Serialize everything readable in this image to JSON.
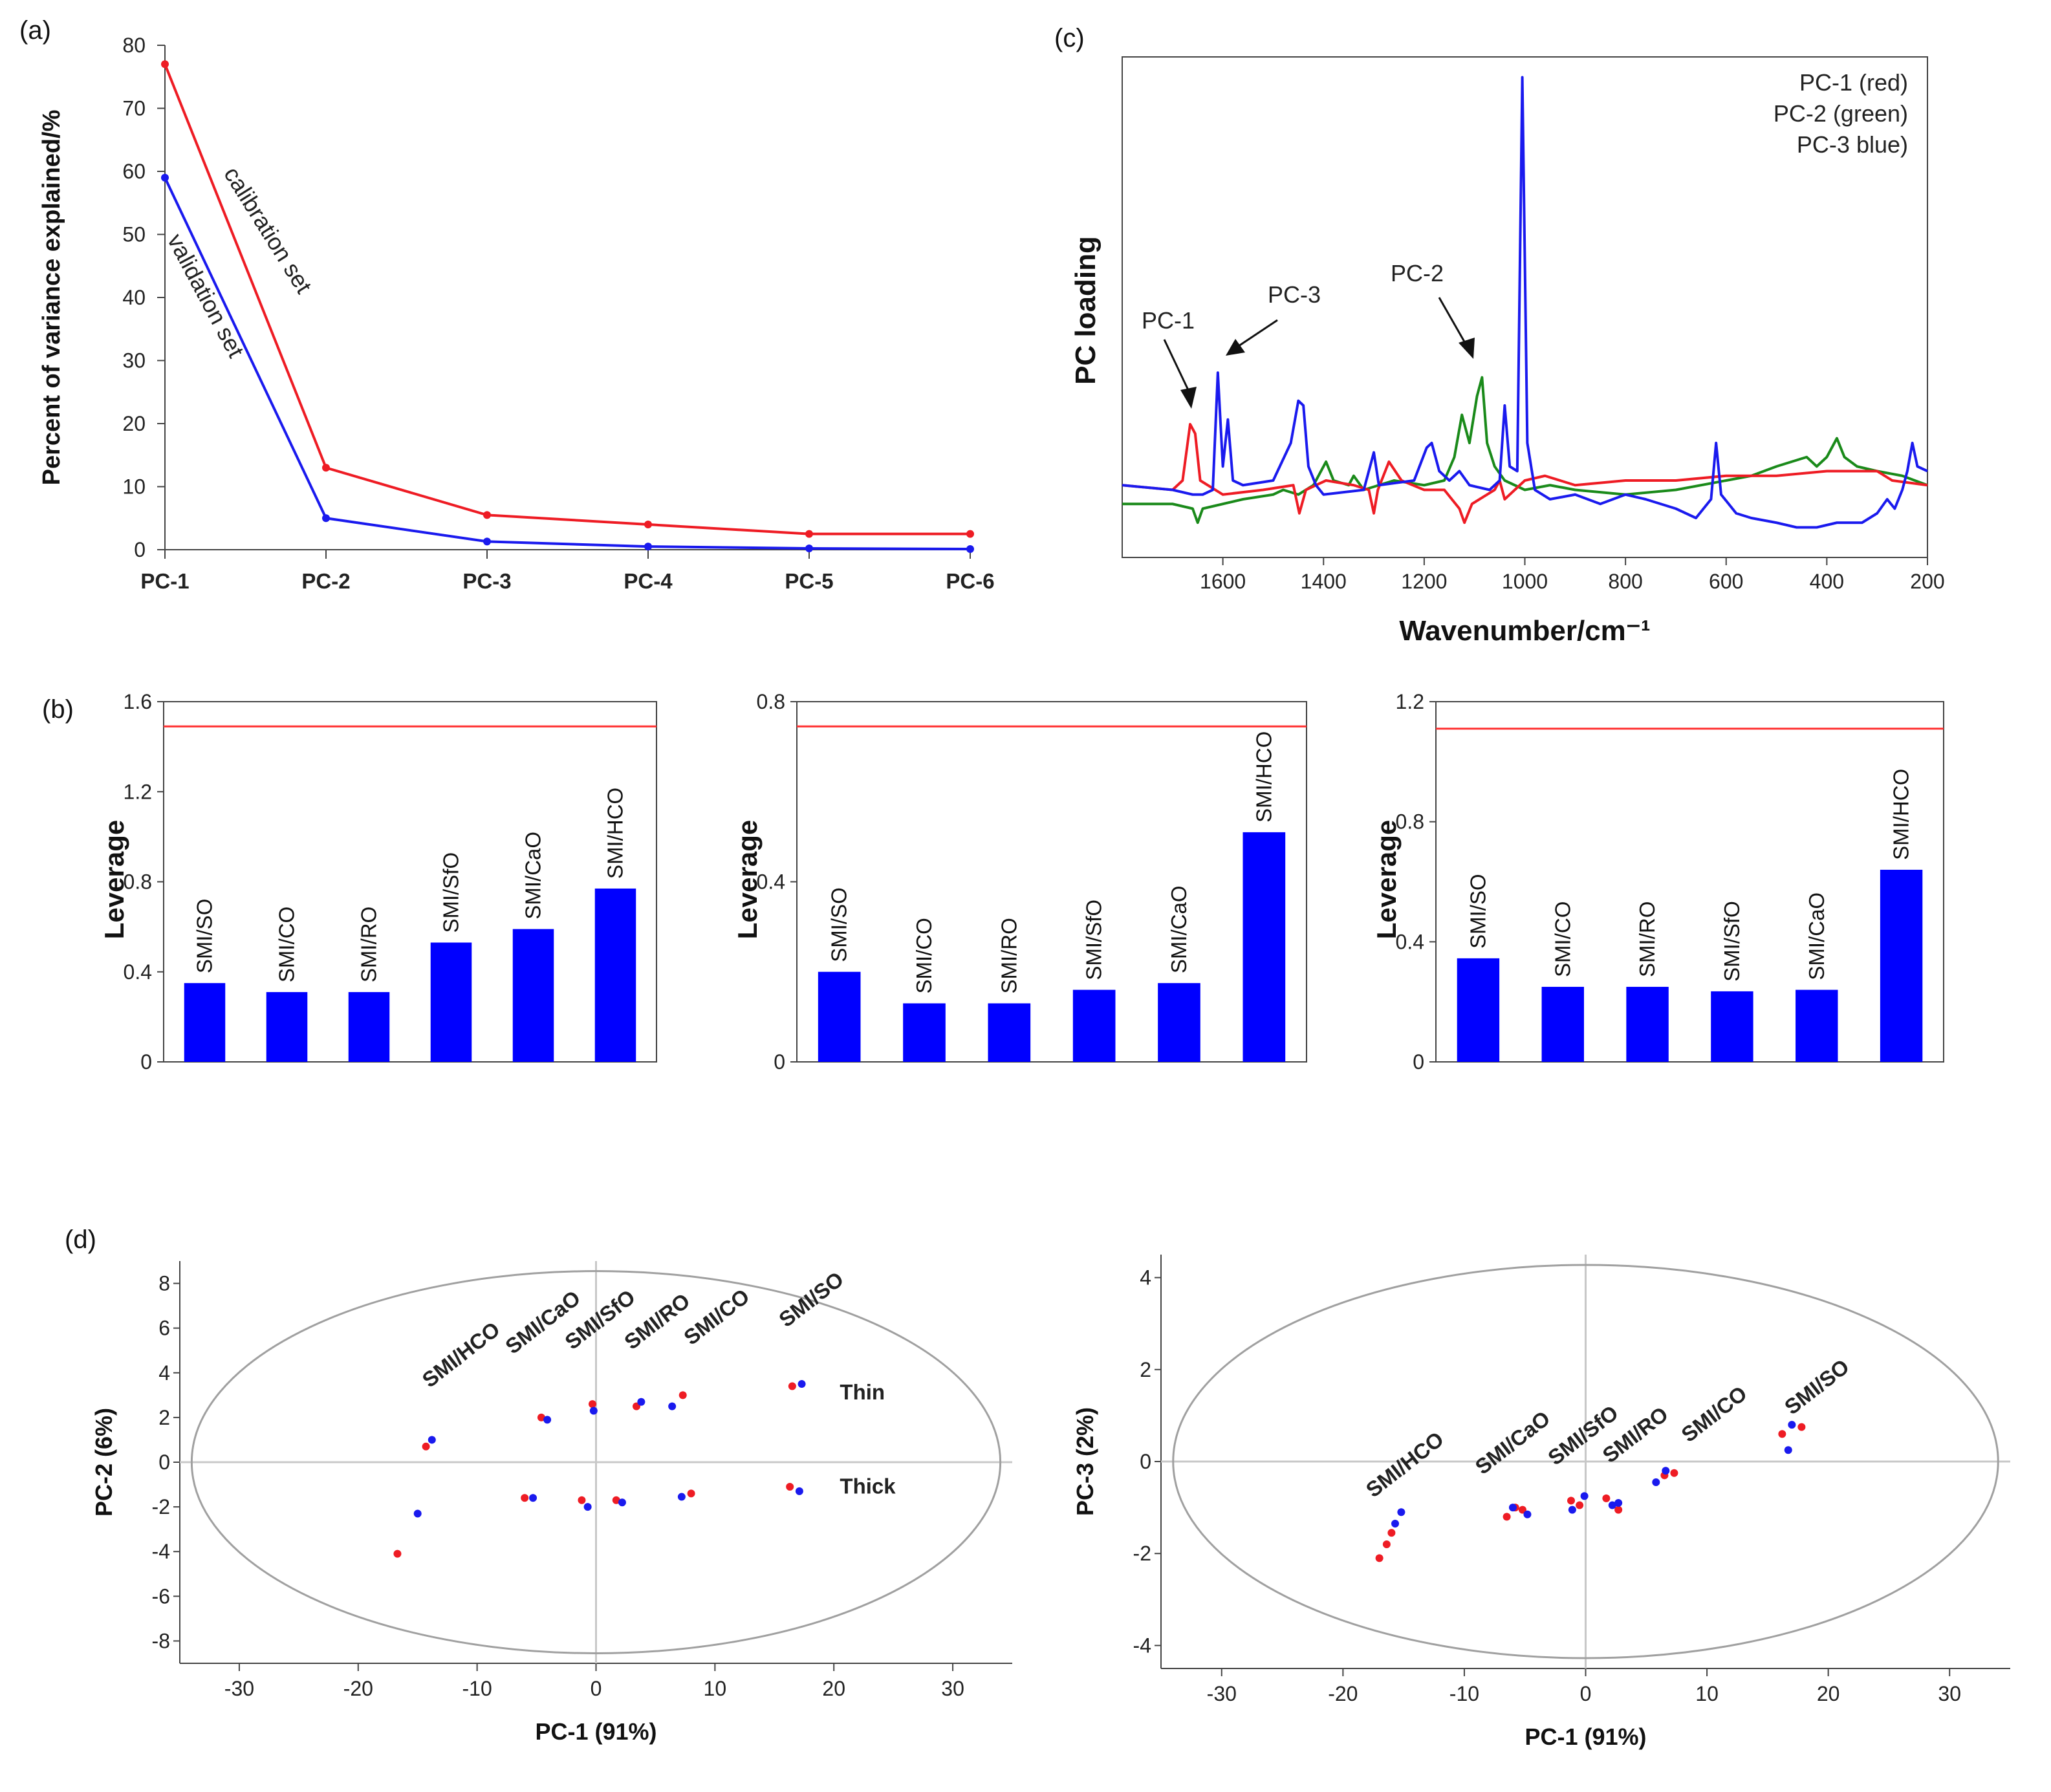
{
  "panel_labels": {
    "a": "(a)",
    "b": "(b)",
    "c": "(c)",
    "d": "(d)"
  },
  "colors": {
    "red": "#ee1c24",
    "blue": "#1a1aee",
    "green": "#1a8a1a",
    "bar": "#0000ff",
    "threshold": "#ff3030",
    "ellipse": "#a0a0a0"
  },
  "chart_data": [
    {
      "id": "a",
      "type": "line",
      "ylabel": "Percent of variance explained/%",
      "categories": [
        "PC-1",
        "PC-2",
        "PC-3",
        "PC-4",
        "PC-5",
        "PC-6"
      ],
      "ylim": [
        0,
        80
      ],
      "yticks": [
        "0",
        "10",
        "20",
        "30",
        "40",
        "50",
        "60",
        "70",
        "80"
      ],
      "series": [
        {
          "name": "calibration set",
          "color": "red",
          "values": [
            77,
            13,
            5.5,
            4,
            2.5,
            2.5
          ]
        },
        {
          "name": "validation set",
          "color": "blue",
          "values": [
            59,
            5,
            1.3,
            0.5,
            0.2,
            0.1
          ]
        }
      ]
    },
    {
      "id": "b1",
      "type": "bar",
      "ylabel": "Leverage",
      "categories": [
        "SMI/SO",
        "SMI/CO",
        "SMI/RO",
        "SMI/SfO",
        "SMI/CaO",
        "SMI/HCO"
      ],
      "values": [
        0.35,
        0.31,
        0.31,
        0.53,
        0.59,
        0.77
      ],
      "threshold": 1.49,
      "ylim": [
        0,
        1.6
      ],
      "yticks": [
        "0",
        "0.4",
        "0.8",
        "1.2",
        "1.6"
      ]
    },
    {
      "id": "b2",
      "type": "bar",
      "ylabel": "Leverage",
      "categories": [
        "SMI/SO",
        "SMI/CO",
        "SMI/RO",
        "SMI/SfO",
        "SMI/CaO",
        "SMI/HCO"
      ],
      "values": [
        0.2,
        0.13,
        0.13,
        0.16,
        0.175,
        0.51
      ],
      "threshold": 0.745,
      "ylim": [
        0,
        0.8
      ],
      "yticks": [
        "0",
        "0.4",
        "0.8"
      ]
    },
    {
      "id": "b3",
      "type": "bar",
      "ylabel": "Leverage",
      "categories": [
        "SMI/SO",
        "SMI/CO",
        "SMI/RO",
        "SMI/SfO",
        "SMI/CaO",
        "SMI/HCO"
      ],
      "values": [
        0.345,
        0.25,
        0.25,
        0.235,
        0.24,
        0.64
      ],
      "threshold": 1.11,
      "ylim": [
        0,
        1.2
      ],
      "yticks": [
        "0",
        "0.4",
        "0.8",
        "1.2"
      ]
    },
    {
      "id": "c",
      "type": "line",
      "xlabel": "Wavenumber/cm⁻¹",
      "ylabel": "PC loading",
      "xlim": [
        1800,
        200
      ],
      "xticks": [
        "1600",
        "1400",
        "1200",
        "1000",
        "800",
        "600",
        "400",
        "200"
      ],
      "legend": [
        "PC-1 (red)",
        "PC-2 (green)",
        "PC-3 blue)"
      ],
      "annotations": [
        {
          "text": "PC-1",
          "x": 1660
        },
        {
          "text": "PC-3",
          "x": 1610
        },
        {
          "text": "PC-2",
          "x": 1085
        }
      ],
      "series": [
        {
          "name": "PC-1",
          "color": "red",
          "points": [
            [
              1800,
              0.11
            ],
            [
              1700,
              0.1
            ],
            [
              1680,
              0.12
            ],
            [
              1665,
              0.24
            ],
            [
              1655,
              0.22
            ],
            [
              1645,
              0.12
            ],
            [
              1600,
              0.09
            ],
            [
              1520,
              0.1
            ],
            [
              1460,
              0.11
            ],
            [
              1448,
              0.05
            ],
            [
              1435,
              0.1
            ],
            [
              1395,
              0.12
            ],
            [
              1340,
              0.11
            ],
            [
              1310,
              0.1
            ],
            [
              1300,
              0.05
            ],
            [
              1292,
              0.1
            ],
            [
              1270,
              0.16
            ],
            [
              1245,
              0.12
            ],
            [
              1200,
              0.1
            ],
            [
              1160,
              0.1
            ],
            [
              1130,
              0.06
            ],
            [
              1120,
              0.03
            ],
            [
              1105,
              0.07
            ],
            [
              1060,
              0.1
            ],
            [
              1050,
              0.12
            ],
            [
              1040,
              0.08
            ],
            [
              1020,
              0.1
            ],
            [
              1000,
              0.12
            ],
            [
              960,
              0.13
            ],
            [
              900,
              0.11
            ],
            [
              800,
              0.12
            ],
            [
              700,
              0.12
            ],
            [
              600,
              0.13
            ],
            [
              500,
              0.13
            ],
            [
              400,
              0.14
            ],
            [
              300,
              0.14
            ],
            [
              270,
              0.12
            ],
            [
              200,
              0.11
            ]
          ]
        },
        {
          "name": "PC-2",
          "color": "green",
          "points": [
            [
              1800,
              0.07
            ],
            [
              1700,
              0.07
            ],
            [
              1660,
              0.06
            ],
            [
              1650,
              0.03
            ],
            [
              1640,
              0.06
            ],
            [
              1560,
              0.08
            ],
            [
              1500,
              0.09
            ],
            [
              1480,
              0.1
            ],
            [
              1450,
              0.09
            ],
            [
              1420,
              0.11
            ],
            [
              1395,
              0.16
            ],
            [
              1380,
              0.12
            ],
            [
              1350,
              0.11
            ],
            [
              1340,
              0.13
            ],
            [
              1320,
              0.1
            ],
            [
              1260,
              0.12
            ],
            [
              1200,
              0.11
            ],
            [
              1160,
              0.12
            ],
            [
              1140,
              0.17
            ],
            [
              1125,
              0.26
            ],
            [
              1110,
              0.2
            ],
            [
              1095,
              0.3
            ],
            [
              1085,
              0.34
            ],
            [
              1075,
              0.2
            ],
            [
              1060,
              0.15
            ],
            [
              1040,
              0.12
            ],
            [
              1000,
              0.1
            ],
            [
              950,
              0.11
            ],
            [
              900,
              0.1
            ],
            [
              800,
              0.09
            ],
            [
              700,
              0.1
            ],
            [
              600,
              0.12
            ],
            [
              550,
              0.13
            ],
            [
              500,
              0.15
            ],
            [
              470,
              0.16
            ],
            [
              440,
              0.17
            ],
            [
              420,
              0.15
            ],
            [
              400,
              0.17
            ],
            [
              380,
              0.21
            ],
            [
              365,
              0.17
            ],
            [
              340,
              0.15
            ],
            [
              300,
              0.14
            ],
            [
              250,
              0.13
            ],
            [
              200,
              0.11
            ]
          ]
        },
        {
          "name": "PC-3",
          "color": "blue",
          "points": [
            [
              1800,
              0.11
            ],
            [
              1700,
              0.1
            ],
            [
              1660,
              0.09
            ],
            [
              1640,
              0.09
            ],
            [
              1620,
              0.1
            ],
            [
              1610,
              0.35
            ],
            [
              1600,
              0.15
            ],
            [
              1590,
              0.25
            ],
            [
              1580,
              0.12
            ],
            [
              1560,
              0.11
            ],
            [
              1500,
              0.12
            ],
            [
              1465,
              0.2
            ],
            [
              1450,
              0.29
            ],
            [
              1440,
              0.28
            ],
            [
              1430,
              0.15
            ],
            [
              1415,
              0.11
            ],
            [
              1400,
              0.09
            ],
            [
              1320,
              0.1
            ],
            [
              1300,
              0.18
            ],
            [
              1290,
              0.11
            ],
            [
              1220,
              0.12
            ],
            [
              1195,
              0.19
            ],
            [
              1185,
              0.2
            ],
            [
              1170,
              0.14
            ],
            [
              1150,
              0.12
            ],
            [
              1130,
              0.14
            ],
            [
              1110,
              0.11
            ],
            [
              1070,
              0.1
            ],
            [
              1050,
              0.12
            ],
            [
              1040,
              0.28
            ],
            [
              1030,
              0.15
            ],
            [
              1015,
              0.14
            ],
            [
              1005,
              0.98
            ],
            [
              995,
              0.2
            ],
            [
              980,
              0.1
            ],
            [
              950,
              0.08
            ],
            [
              900,
              0.09
            ],
            [
              850,
              0.07
            ],
            [
              800,
              0.09
            ],
            [
              760,
              0.08
            ],
            [
              700,
              0.06
            ],
            [
              660,
              0.04
            ],
            [
              630,
              0.08
            ],
            [
              620,
              0.2
            ],
            [
              610,
              0.09
            ],
            [
              580,
              0.05
            ],
            [
              550,
              0.04
            ],
            [
              500,
              0.03
            ],
            [
              460,
              0.02
            ],
            [
              420,
              0.02
            ],
            [
              380,
              0.03
            ],
            [
              330,
              0.03
            ],
            [
              300,
              0.05
            ],
            [
              280,
              0.08
            ],
            [
              265,
              0.06
            ],
            [
              250,
              0.1
            ],
            [
              240,
              0.14
            ],
            [
              230,
              0.2
            ],
            [
              220,
              0.15
            ],
            [
              200,
              0.14
            ]
          ]
        }
      ]
    },
    {
      "id": "d1",
      "type": "scatter",
      "xlabel": "PC-1 (91%)",
      "ylabel": "PC-2 (6%)",
      "xlim": [
        -35,
        35
      ],
      "ylim": [
        -9,
        9
      ],
      "xticks": [
        "-30",
        "-20",
        "-10",
        "0",
        "10",
        "20",
        "30"
      ],
      "yticks": [
        "8",
        "6",
        "4",
        "2",
        "0",
        "-2",
        "-4",
        "-6",
        "-8"
      ],
      "group_labels": [
        {
          "text": "SMI/HCO",
          "x": -14,
          "y": 3.3
        },
        {
          "text": "SMI/CaO",
          "x": -7,
          "y": 4.8
        },
        {
          "text": "SMI/SfO",
          "x": -2,
          "y": 5.0
        },
        {
          "text": "SMI/RO",
          "x": 3,
          "y": 5.0
        },
        {
          "text": "SMI/CO",
          "x": 8,
          "y": 5.2
        },
        {
          "text": "SMI/SO",
          "x": 16,
          "y": 6.0
        }
      ],
      "text_labels": [
        {
          "text": "Thin",
          "x": 20.5,
          "y": 2.8
        },
        {
          "text": "Thick",
          "x": 20.5,
          "y": -1.4
        }
      ],
      "series": [
        {
          "name": "red",
          "color": "red",
          "points": [
            [
              -14.3,
              0.7
            ],
            [
              -4.6,
              2.0
            ],
            [
              -0.3,
              2.6
            ],
            [
              3.4,
              2.5
            ],
            [
              7.3,
              3.0
            ],
            [
              16.5,
              3.4
            ],
            [
              -6,
              -1.6
            ],
            [
              -1.2,
              -1.7
            ],
            [
              1.7,
              -1.7
            ],
            [
              8,
              -1.4
            ],
            [
              16.3,
              -1.1
            ],
            [
              -16.7,
              -4.1
            ]
          ]
        },
        {
          "name": "blue",
          "color": "blue",
          "points": [
            [
              -13.8,
              1.0
            ],
            [
              -4.1,
              1.9
            ],
            [
              -0.2,
              2.3
            ],
            [
              3.8,
              2.7
            ],
            [
              6.4,
              2.5
            ],
            [
              17.3,
              3.5
            ],
            [
              -5.3,
              -1.6
            ],
            [
              -0.7,
              -2.0
            ],
            [
              2.2,
              -1.8
            ],
            [
              7.2,
              -1.55
            ],
            [
              17.1,
              -1.3
            ],
            [
              -15,
              -2.3
            ]
          ]
        }
      ]
    },
    {
      "id": "d2",
      "type": "scatter",
      "xlabel": "PC-1 (91%)",
      "ylabel": "PC-3 (2%)",
      "xlim": [
        -35,
        35
      ],
      "ylim": [
        -4.5,
        4.5
      ],
      "xticks": [
        "-30",
        "-20",
        "-10",
        "0",
        "10",
        "20",
        "30"
      ],
      "yticks": [
        "4",
        "2",
        "0",
        "-2",
        "-4"
      ],
      "group_labels": [
        {
          "text": "SMI/HCO",
          "x": -17.5,
          "y": -0.8
        },
        {
          "text": "SMI/CaO",
          "x": -8.5,
          "y": -0.3
        },
        {
          "text": "SMI/SfO",
          "x": -2.5,
          "y": -0.1
        },
        {
          "text": "SMI/RO",
          "x": 2,
          "y": -0.05
        },
        {
          "text": "SMI/CO",
          "x": 8.5,
          "y": 0.4
        },
        {
          "text": "SMI/SO",
          "x": 17,
          "y": 1.0
        }
      ],
      "series": [
        {
          "name": "red",
          "color": "red",
          "points": [
            [
              -17,
              -2.1
            ],
            [
              -16.4,
              -1.8
            ],
            [
              -16,
              -1.55
            ],
            [
              -6.5,
              -1.2
            ],
            [
              -5.8,
              -1.0
            ],
            [
              -5.2,
              -1.05
            ],
            [
              -1.2,
              -0.85
            ],
            [
              -0.5,
              -0.95
            ],
            [
              1.7,
              -0.8
            ],
            [
              2.7,
              -1.05
            ],
            [
              6.5,
              -0.3
            ],
            [
              7.3,
              -0.25
            ],
            [
              16.2,
              0.6
            ],
            [
              17.8,
              0.75
            ]
          ]
        },
        {
          "name": "blue",
          "color": "blue",
          "points": [
            [
              -15.7,
              -1.35
            ],
            [
              -15.2,
              -1.1
            ],
            [
              -6,
              -1.0
            ],
            [
              -4.8,
              -1.15
            ],
            [
              -1.1,
              -1.05
            ],
            [
              -0.1,
              -0.75
            ],
            [
              2.2,
              -0.95
            ],
            [
              2.7,
              -0.9
            ],
            [
              5.8,
              -0.45
            ],
            [
              6.6,
              -0.2
            ],
            [
              16.7,
              0.25
            ],
            [
              17,
              0.8
            ]
          ]
        }
      ]
    }
  ]
}
